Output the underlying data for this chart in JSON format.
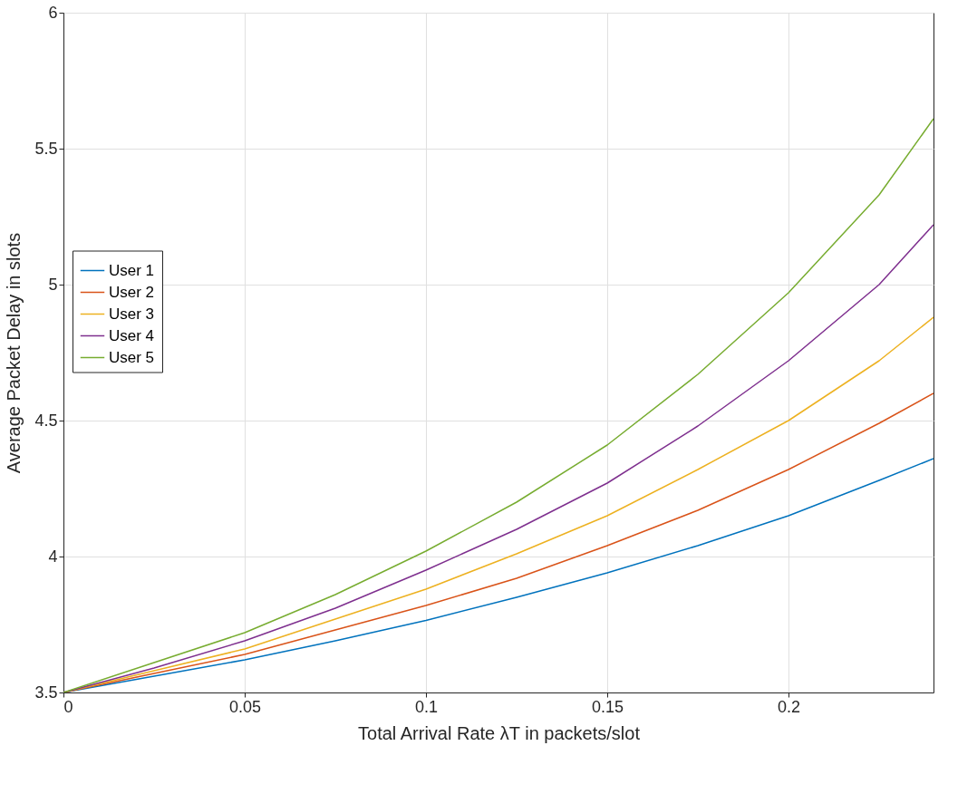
{
  "chart_data": {
    "type": "line",
    "xlabel": "Total Arrival Rate λT in packets/slot",
    "ylabel": "Average Packet Delay in slots",
    "x": [
      0,
      0.025,
      0.05,
      0.075,
      0.1,
      0.125,
      0.15,
      0.175,
      0.2,
      0.225,
      0.24
    ],
    "series": [
      {
        "name": "User 1",
        "color": "#0072bd",
        "values": [
          3.5,
          3.56,
          3.62,
          3.69,
          3.765,
          3.85,
          3.94,
          4.04,
          4.15,
          4.28,
          4.36
        ]
      },
      {
        "name": "User 2",
        "color": "#d95319",
        "values": [
          3.5,
          3.57,
          3.64,
          3.73,
          3.82,
          3.92,
          4.04,
          4.17,
          4.32,
          4.49,
          4.6
        ]
      },
      {
        "name": "User 3",
        "color": "#edb120",
        "values": [
          3.5,
          3.58,
          3.66,
          3.77,
          3.88,
          4.01,
          4.15,
          4.32,
          4.5,
          4.72,
          4.88
        ]
      },
      {
        "name": "User 4",
        "color": "#7e2f8e",
        "values": [
          3.5,
          3.59,
          3.69,
          3.81,
          3.95,
          4.1,
          4.27,
          4.48,
          4.72,
          5.0,
          5.22
        ]
      },
      {
        "name": "User 5",
        "color": "#77ac30",
        "values": [
          3.5,
          3.61,
          3.72,
          3.86,
          4.02,
          4.2,
          4.41,
          4.67,
          4.97,
          5.33,
          5.61
        ]
      }
    ],
    "xlim": [
      0,
      0.24
    ],
    "xticks": [
      0,
      0.05,
      0.1,
      0.15,
      0.2
    ],
    "ylim": [
      3.5,
      6
    ],
    "yticks": [
      3.5,
      4,
      4.5,
      5,
      5.5,
      6
    ],
    "grid": true,
    "legend": "left",
    "marker": "none",
    "line_style": "solid"
  }
}
